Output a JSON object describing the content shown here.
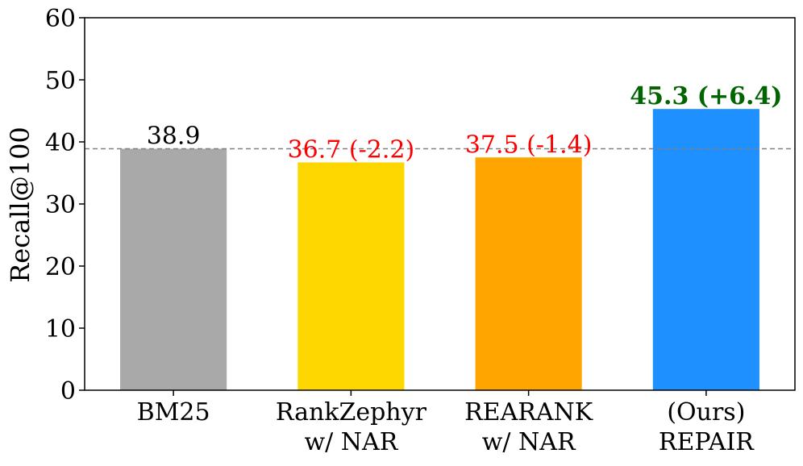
{
  "chart_data": {
    "type": "bar",
    "title": "",
    "xlabel": "",
    "ylabel": "Recall@100",
    "ylim": [
      0,
      60
    ],
    "yticks": [
      0,
      10,
      20,
      30,
      40,
      50,
      60
    ],
    "grid": false,
    "baseline": {
      "value": 38.9,
      "style": "dashed",
      "color": "#808080"
    },
    "categories": [
      [
        "BM25"
      ],
      [
        "RankZephyr",
        "w/ NAR"
      ],
      [
        "REARANK",
        "w/ NAR"
      ],
      [
        "(Ours)",
        "REPAIR"
      ]
    ],
    "values": [
      38.9,
      36.7,
      37.5,
      45.3
    ],
    "bar_colors": [
      "#a9a9a9",
      "#ffd700",
      "#ffa500",
      "#1e90ff"
    ],
    "data_labels": [
      "38.9",
      "36.7 (-2.2)",
      "37.5 (-1.4)",
      "45.3 (+6.4)"
    ],
    "data_label_colors": [
      "#000000",
      "#ff0000",
      "#ff0000",
      "#006400"
    ],
    "data_label_bold": [
      false,
      false,
      false,
      true
    ]
  }
}
